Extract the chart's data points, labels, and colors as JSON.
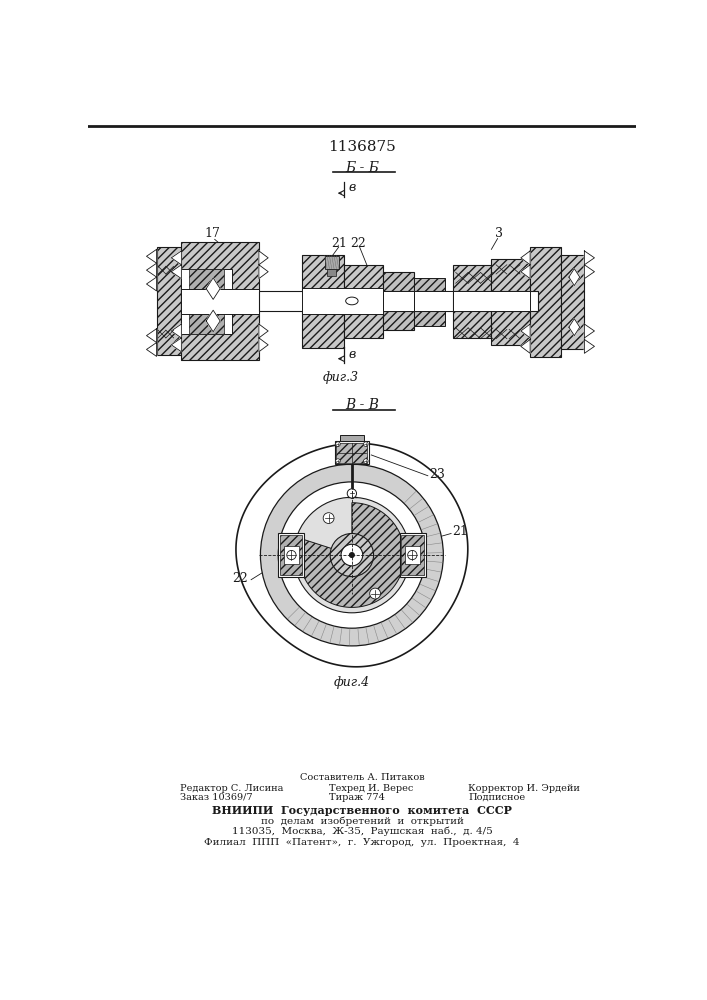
{
  "patent_number": "1136875",
  "fig3_label": "Б - Б",
  "fig3_caption": "фиг.3",
  "fig4_label": "В - В",
  "fig4_caption": "фиг.4",
  "line_color": "#1a1a1a",
  "bg_color": "#ffffff",
  "footer": {
    "line1": "Составитель А. Питаков",
    "col1_row1": "Редактор С. Лисина",
    "col2_row1": "Техред И. Верес",
    "col3_row1": "Корректор И. Эрдейи",
    "col1_row2": "Заказ 10369/7",
    "col2_row2": "Тираж 774",
    "col3_row2": "Подписное",
    "vnipi1": "ВНИИПИ  Государственного  комитета  СССР",
    "vnipi2": "по  делам  изобретений  и  открытий",
    "vnipi3": "113035,  Москва,  Ж-35,  Раушская  наб.,  д. 4/5",
    "vnipi4": "Филиал  ППП  «Патент»,  г.  Ужгород,  ул.  Проектная,  4"
  }
}
